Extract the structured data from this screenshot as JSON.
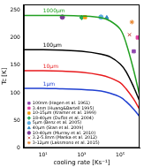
{
  "chart_data": {
    "type": "line",
    "x_label": "cooling rate [Ks⁻¹]",
    "y_label": "Tc [K]",
    "log": "x",
    "xlim": [
      1,
      1000000
    ],
    "xticks": [
      {
        "value": 10,
        "label": "10¹"
      },
      {
        "value": 1000,
        "label": "10³"
      },
      {
        "value": 100000,
        "label": "10⁵"
      }
    ],
    "ylim": [
      0,
      260
    ],
    "yticks": [
      0,
      50,
      100,
      150,
      200,
      250
    ],
    "grid": false,
    "legend": "lower left",
    "series": [
      {
        "name": "1000μm",
        "type": "line",
        "line_style": "solid",
        "color": "#22a022",
        "x": [
          1,
          10,
          100,
          1000,
          10000,
          30000,
          100000,
          200000,
          500000,
          1000000
        ],
        "values": [
          240,
          240,
          240,
          239,
          236,
          230,
          215,
          190,
          140,
          95
        ]
      },
      {
        "name": "100μm",
        "type": "line",
        "line_style": "solid",
        "color": "#000000",
        "x": [
          1,
          10,
          100,
          1000,
          10000,
          30000,
          100000,
          200000,
          500000,
          1000000
        ],
        "values": [
          178,
          178,
          177,
          175,
          170,
          165,
          152,
          138,
          110,
          85
        ]
      },
      {
        "name": "10μm",
        "type": "line",
        "line_style": "solid",
        "color": "#e8191c",
        "x": [
          1,
          10,
          100,
          1000,
          10000,
          30000,
          100000,
          200000,
          500000,
          1000000
        ],
        "values": [
          140,
          140,
          139,
          137,
          132,
          127,
          118,
          107,
          88,
          70
        ]
      },
      {
        "name": "1μm",
        "type": "line",
        "line_style": "solid",
        "color": "#1f3fd1",
        "x": [
          1,
          10,
          100,
          1000,
          10000,
          30000,
          100000,
          200000,
          500000,
          1000000
        ],
        "values": [
          108,
          108,
          107,
          106,
          103,
          99,
          92,
          84,
          70,
          57
        ]
      },
      {
        "name": "100nm (Hagen et al. 1961)",
        "type": "scatter",
        "marker": "square",
        "color": "#8e44ad",
        "x": [
          500000
        ],
        "values": [
          175
        ]
      },
      {
        "name": "3.4nm (Huang&Bartell 1995)",
        "type": "scatter",
        "marker": "square",
        "color": "#e040a0",
        "x": [
          800000
        ],
        "values": [
          200
        ]
      },
      {
        "name": "10-15μm (Kramer et al. 1999)",
        "type": "scatter",
        "marker": "square",
        "color": "#f39c12",
        "x": [
          1500
        ],
        "values": [
          237
        ]
      },
      {
        "name": "18-40μm (Duflot et al. 2004)",
        "type": "scatter",
        "marker": "diamond",
        "color": "#27ae60",
        "x": [
          1000
        ],
        "values": [
          236
        ]
      },
      {
        "name": "5μm (Benz et al. 2005)",
        "type": "scatter",
        "marker": "circle",
        "color": "#5dade2",
        "x": [
          10000
        ],
        "values": [
          237
        ]
      },
      {
        "name": "40μm (Stan et al. 2009)",
        "type": "scatter",
        "marker": "triangle",
        "color": "#2e86c1",
        "x": [
          20000
        ],
        "values": [
          236
        ]
      },
      {
        "name": "10-40μm (Murray et al. 2010)",
        "type": "scatter",
        "marker": "circle",
        "color": "#7d3c98",
        "x": [
          100
        ],
        "values": [
          237
        ]
      },
      {
        "name": "3.2-5.8nm (Manka et al. 2012)",
        "type": "scatter",
        "marker": "cross",
        "color": "#c0392b",
        "x": [
          300000
        ],
        "values": [
          205
        ]
      },
      {
        "name": "3-12μm (Laksmono et al. 2015)",
        "type": "scatter",
        "marker": "star",
        "color": "#e67e22",
        "x": [
          400000
        ],
        "values": [
          228
        ]
      }
    ]
  }
}
